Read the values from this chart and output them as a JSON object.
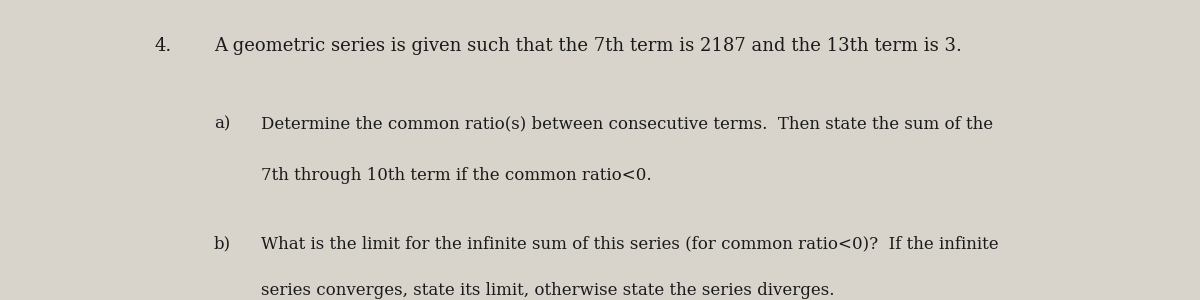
{
  "background_color": "#d8d4cc",
  "text_color": "#1a1a1a",
  "number": "4.",
  "line1": "A geometric series is given such that the 7th term is 2187 and the 13th term is 3.",
  "line_a_label": "a)",
  "line_a1": "Determine the common ratio(s) between consecutive terms.  Then state the sum of the",
  "line_a2": "7th through 10th term if the common ratio<0.",
  "line_b_label": "b)",
  "line_b1": "What is the limit for the infinite sum of this series (for common ratio<0)?  If the infinite",
  "line_b2": "series converges, state its limit, otherwise state the series diverges.",
  "font_size_header": 13,
  "font_size_body": 12,
  "font_family": "DejaVu Serif"
}
